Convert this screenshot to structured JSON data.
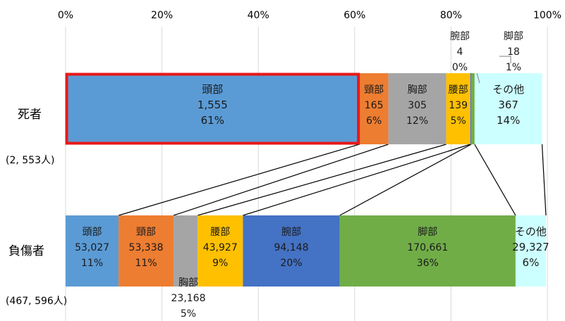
{
  "chart_data": {
    "type": "bar",
    "stacked": true,
    "orientation": "horizontal",
    "percent_axis": true,
    "xlim": [
      0,
      100
    ],
    "xticks": [
      0,
      20,
      40,
      60,
      80,
      100
    ],
    "xtick_labels": [
      "0%",
      "20%",
      "40%",
      "60%",
      "80%",
      "100%"
    ],
    "grid": "vertical",
    "rows": [
      {
        "label": "死者",
        "total_label": "(2, 553人)",
        "segments": [
          {
            "name": "頭部",
            "value": "1,555",
            "pct": "61%",
            "pct_value": 61,
            "color": "#5b9bd5"
          },
          {
            "name": "頸部",
            "value": "165",
            "pct": "6%",
            "pct_value": 6,
            "color": "#ed7d31"
          },
          {
            "name": "胸部",
            "value": "305",
            "pct": "12%",
            "pct_value": 12,
            "color": "#a5a5a5"
          },
          {
            "name": "腰部",
            "value": "139",
            "pct": "5%",
            "pct_value": 5,
            "color": "#ffc000"
          },
          {
            "name": "腕部",
            "value": "4",
            "pct": "0%",
            "pct_value": 0.2,
            "color": "#4472c4"
          },
          {
            "name": "脚部",
            "value": "18",
            "pct": "1%",
            "pct_value": 0.7,
            "color": "#70ad47"
          },
          {
            "name": "その他",
            "value": "367",
            "pct": "14%",
            "pct_value": 14,
            "color": "#ccffff"
          }
        ]
      },
      {
        "label": "負傷者",
        "total_label": "(467, 596人)",
        "segments": [
          {
            "name": "頭部",
            "value": "53,027",
            "pct": "11%",
            "pct_value": 11,
            "color": "#5b9bd5"
          },
          {
            "name": "頸部",
            "value": "53,338",
            "pct": "11%",
            "pct_value": 11.4,
            "color": "#ed7d31"
          },
          {
            "name": "胸部",
            "value": "23,168",
            "pct": "5%",
            "pct_value": 5,
            "color": "#a5a5a5"
          },
          {
            "name": "腰部",
            "value": "43,927",
            "pct": "9%",
            "pct_value": 9.4,
            "color": "#ffc000"
          },
          {
            "name": "腕部",
            "value": "94,148",
            "pct": "20%",
            "pct_value": 20.1,
            "color": "#4472c4"
          },
          {
            "name": "脚部",
            "value": "170,661",
            "pct": "36%",
            "pct_value": 36.5,
            "color": "#70ad47"
          },
          {
            "name": "その他",
            "value": "29,327",
            "pct": "6%",
            "pct_value": 6.3,
            "color": "#ccffff"
          }
        ]
      }
    ],
    "highlight": {
      "row": 0,
      "segment": 0,
      "color": "#e81818"
    }
  }
}
